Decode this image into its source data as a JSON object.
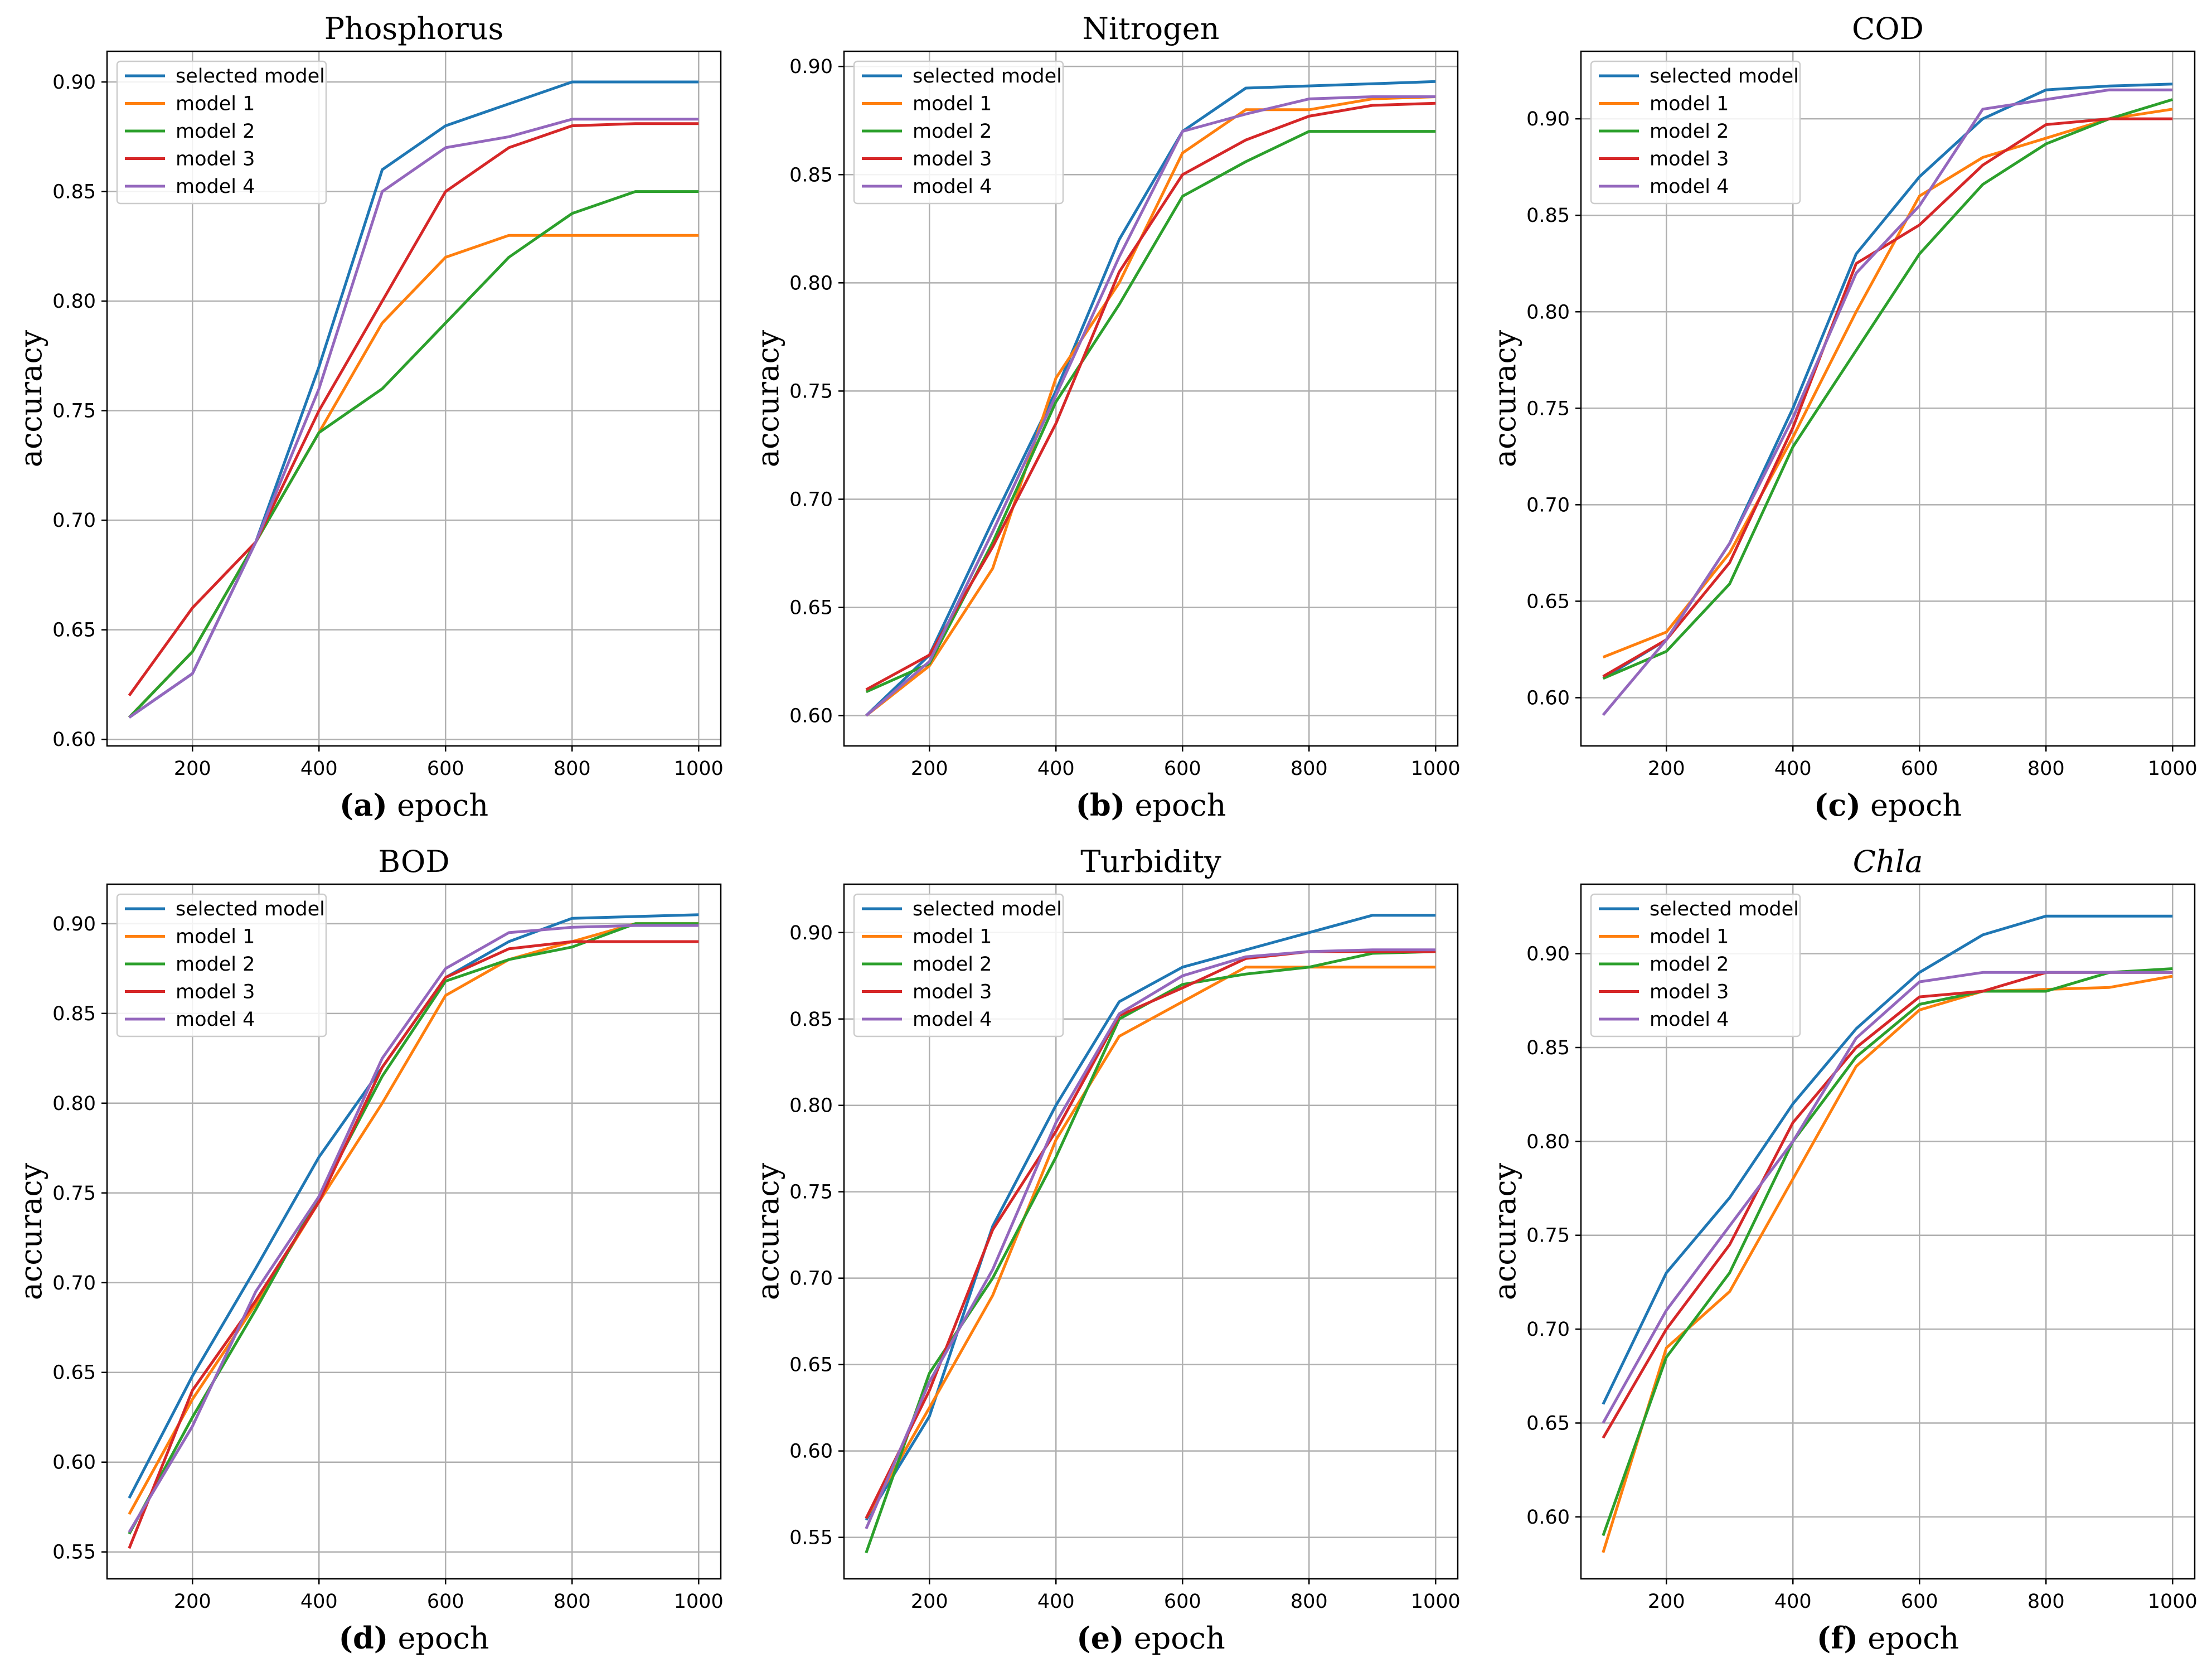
{
  "chart_data": [
    {
      "type": "line",
      "title": "Phosphorus",
      "panel": "(a)",
      "xlabel": "epoch",
      "ylabel": "accuracy",
      "xlim": [
        65,
        1035
      ],
      "ylim": [
        0.597,
        0.914
      ],
      "xticks": [
        200,
        400,
        600,
        800,
        1000
      ],
      "yticks": [
        0.6,
        0.65,
        0.7,
        0.75,
        0.8,
        0.85,
        0.9
      ],
      "grid": true,
      "legend": "top-left",
      "x": [
        100,
        200,
        300,
        400,
        500,
        600,
        700,
        800,
        900,
        1000
      ],
      "series": [
        {
          "name": "selected model",
          "color": "#1f77b4",
          "values": [
            0.61,
            0.63,
            0.69,
            0.77,
            0.86,
            0.88,
            0.89,
            0.9,
            0.9,
            0.9
          ]
        },
        {
          "name": "model 1",
          "color": "#ff7f0e",
          "values": [
            0.61,
            0.64,
            0.69,
            0.74,
            0.79,
            0.82,
            0.83,
            0.83,
            0.83,
            0.83
          ]
        },
        {
          "name": "model 2",
          "color": "#2ca02c",
          "values": [
            0.61,
            0.64,
            0.69,
            0.74,
            0.76,
            0.79,
            0.82,
            0.84,
            0.85,
            0.85
          ]
        },
        {
          "name": "model 3",
          "color": "#d62728",
          "values": [
            0.62,
            0.66,
            0.69,
            0.75,
            0.8,
            0.85,
            0.87,
            0.88,
            0.881,
            0.881
          ]
        },
        {
          "name": "model 4",
          "color": "#9467bd",
          "values": [
            0.61,
            0.63,
            0.69,
            0.76,
            0.85,
            0.87,
            0.875,
            0.883,
            0.883,
            0.883
          ]
        }
      ]
    },
    {
      "type": "line",
      "title": "Nitrogen",
      "panel": "(b)",
      "xlabel": "epoch",
      "ylabel": "accuracy",
      "xlim": [
        65,
        1035
      ],
      "ylim": [
        0.586,
        0.907
      ],
      "xticks": [
        200,
        400,
        600,
        800,
        1000
      ],
      "yticks": [
        0.6,
        0.65,
        0.7,
        0.75,
        0.8,
        0.85,
        0.9
      ],
      "grid": true,
      "legend": "top-left",
      "x": [
        100,
        200,
        300,
        400,
        500,
        600,
        700,
        800,
        900,
        1000
      ],
      "series": [
        {
          "name": "selected model",
          "color": "#1f77b4",
          "values": [
            0.6,
            0.628,
            0.69,
            0.75,
            0.82,
            0.87,
            0.89,
            0.891,
            0.892,
            0.893
          ]
        },
        {
          "name": "model 1",
          "color": "#ff7f0e",
          "values": [
            0.6,
            0.623,
            0.668,
            0.756,
            0.8,
            0.86,
            0.88,
            0.88,
            0.885,
            0.886
          ]
        },
        {
          "name": "model 2",
          "color": "#2ca02c",
          "values": [
            0.611,
            0.624,
            0.68,
            0.745,
            0.79,
            0.84,
            0.856,
            0.87,
            0.87,
            0.87
          ]
        },
        {
          "name": "model 3",
          "color": "#d62728",
          "values": [
            0.612,
            0.628,
            0.678,
            0.735,
            0.805,
            0.85,
            0.866,
            0.877,
            0.882,
            0.883
          ]
        },
        {
          "name": "model 4",
          "color": "#9467bd",
          "values": [
            0.6,
            0.625,
            0.685,
            0.748,
            0.812,
            0.87,
            0.878,
            0.885,
            0.886,
            0.886
          ]
        }
      ]
    },
    {
      "type": "line",
      "title": "COD",
      "panel": "(c)",
      "xlabel": "epoch",
      "ylabel": "accuracy",
      "xlim": [
        65,
        1035
      ],
      "ylim": [
        0.575,
        0.935
      ],
      "xticks": [
        200,
        400,
        600,
        800,
        1000
      ],
      "yticks": [
        0.6,
        0.65,
        0.7,
        0.75,
        0.8,
        0.85,
        0.9
      ],
      "grid": true,
      "legend": "top-left",
      "x": [
        100,
        200,
        300,
        400,
        500,
        600,
        700,
        800,
        900,
        1000
      ],
      "series": [
        {
          "name": "selected model",
          "color": "#1f77b4",
          "values": [
            0.61,
            0.63,
            0.68,
            0.75,
            0.83,
            0.87,
            0.9,
            0.915,
            0.917,
            0.918
          ]
        },
        {
          "name": "model 1",
          "color": "#ff7f0e",
          "values": [
            0.621,
            0.634,
            0.675,
            0.735,
            0.8,
            0.86,
            0.88,
            0.89,
            0.9,
            0.905
          ]
        },
        {
          "name": "model 2",
          "color": "#2ca02c",
          "values": [
            0.61,
            0.624,
            0.659,
            0.73,
            0.78,
            0.83,
            0.866,
            0.887,
            0.9,
            0.91
          ]
        },
        {
          "name": "model 3",
          "color": "#d62728",
          "values": [
            0.611,
            0.63,
            0.67,
            0.74,
            0.825,
            0.845,
            0.876,
            0.897,
            0.9,
            0.9
          ]
        },
        {
          "name": "model 4",
          "color": "#9467bd",
          "values": [
            0.591,
            0.63,
            0.68,
            0.745,
            0.82,
            0.855,
            0.905,
            0.91,
            0.915,
            0.915
          ]
        }
      ]
    },
    {
      "type": "line",
      "title": "BOD",
      "panel": "(d)",
      "xlabel": "epoch",
      "ylabel": "accuracy",
      "xlim": [
        65,
        1035
      ],
      "ylim": [
        0.535,
        0.922
      ],
      "xticks": [
        200,
        400,
        600,
        800,
        1000
      ],
      "yticks": [
        0.55,
        0.6,
        0.65,
        0.7,
        0.75,
        0.8,
        0.85,
        0.9
      ],
      "grid": true,
      "legend": "top-left",
      "x": [
        100,
        200,
        300,
        400,
        500,
        600,
        700,
        800,
        900,
        1000
      ],
      "series": [
        {
          "name": "selected model",
          "color": "#1f77b4",
          "values": [
            0.58,
            0.648,
            0.708,
            0.77,
            0.82,
            0.87,
            0.89,
            0.903,
            0.904,
            0.905
          ]
        },
        {
          "name": "model 1",
          "color": "#ff7f0e",
          "values": [
            0.571,
            0.635,
            0.688,
            0.745,
            0.8,
            0.86,
            0.88,
            0.89,
            0.9,
            0.9
          ]
        },
        {
          "name": "model 2",
          "color": "#2ca02c",
          "values": [
            0.56,
            0.625,
            0.685,
            0.748,
            0.815,
            0.868,
            0.88,
            0.887,
            0.9,
            0.9
          ]
        },
        {
          "name": "model 3",
          "color": "#d62728",
          "values": [
            0.552,
            0.64,
            0.69,
            0.745,
            0.82,
            0.87,
            0.886,
            0.89,
            0.89,
            0.89
          ]
        },
        {
          "name": "model 4",
          "color": "#9467bd",
          "values": [
            0.561,
            0.62,
            0.695,
            0.748,
            0.825,
            0.875,
            0.895,
            0.898,
            0.899,
            0.899
          ]
        }
      ]
    },
    {
      "type": "line",
      "title": "Turbidity",
      "panel": "(e)",
      "xlabel": "epoch",
      "ylabel": "accuracy",
      "xlim": [
        65,
        1035
      ],
      "ylim": [
        0.526,
        0.928
      ],
      "xticks": [
        200,
        400,
        600,
        800,
        1000
      ],
      "yticks": [
        0.55,
        0.6,
        0.65,
        0.7,
        0.75,
        0.8,
        0.85,
        0.9
      ],
      "grid": true,
      "legend": "top-left",
      "x": [
        100,
        200,
        300,
        400,
        500,
        600,
        700,
        800,
        900,
        1000
      ],
      "series": [
        {
          "name": "selected model",
          "color": "#1f77b4",
          "values": [
            0.56,
            0.62,
            0.73,
            0.8,
            0.86,
            0.88,
            0.89,
            0.9,
            0.91,
            0.91
          ]
        },
        {
          "name": "model 1",
          "color": "#ff7f0e",
          "values": [
            0.561,
            0.625,
            0.69,
            0.78,
            0.84,
            0.86,
            0.88,
            0.88,
            0.88,
            0.88
          ]
        },
        {
          "name": "model 2",
          "color": "#2ca02c",
          "values": [
            0.541,
            0.645,
            0.7,
            0.77,
            0.85,
            0.87,
            0.876,
            0.88,
            0.888,
            0.889
          ]
        },
        {
          "name": "model 3",
          "color": "#d62728",
          "values": [
            0.561,
            0.635,
            0.728,
            0.785,
            0.852,
            0.868,
            0.885,
            0.889,
            0.889,
            0.889
          ]
        },
        {
          "name": "model 4",
          "color": "#9467bd",
          "values": [
            0.555,
            0.64,
            0.705,
            0.79,
            0.853,
            0.875,
            0.886,
            0.889,
            0.89,
            0.89
          ]
        }
      ]
    },
    {
      "type": "line",
      "title": "Chla",
      "panel": "(f)",
      "xlabel": "epoch",
      "ylabel": "accuracy",
      "xlim": [
        65,
        1035
      ],
      "ylim": [
        0.567,
        0.937
      ],
      "xticks": [
        200,
        400,
        600,
        800,
        1000
      ],
      "yticks": [
        0.6,
        0.65,
        0.7,
        0.75,
        0.8,
        0.85,
        0.9
      ],
      "grid": true,
      "legend": "top-left",
      "x": [
        100,
        200,
        300,
        400,
        500,
        600,
        700,
        800,
        900,
        1000
      ],
      "series": [
        {
          "name": "selected model",
          "color": "#1f77b4",
          "values": [
            0.66,
            0.73,
            0.77,
            0.82,
            0.86,
            0.89,
            0.91,
            0.92,
            0.92,
            0.92
          ]
        },
        {
          "name": "model 1",
          "color": "#ff7f0e",
          "values": [
            0.581,
            0.69,
            0.72,
            0.78,
            0.84,
            0.87,
            0.88,
            0.881,
            0.882,
            0.888
          ]
        },
        {
          "name": "model 2",
          "color": "#2ca02c",
          "values": [
            0.59,
            0.685,
            0.73,
            0.8,
            0.845,
            0.873,
            0.88,
            0.88,
            0.89,
            0.892
          ]
        },
        {
          "name": "model 3",
          "color": "#d62728",
          "values": [
            0.642,
            0.7,
            0.745,
            0.81,
            0.85,
            0.877,
            0.88,
            0.89,
            0.89,
            0.89
          ]
        },
        {
          "name": "model 4",
          "color": "#9467bd",
          "values": [
            0.65,
            0.71,
            0.755,
            0.8,
            0.855,
            0.885,
            0.89,
            0.89,
            0.89,
            0.89
          ]
        }
      ]
    }
  ]
}
